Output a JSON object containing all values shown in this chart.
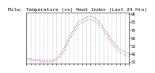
{
  "title": "Milw. Temperature (vs) Heat Index (Last 24 Hrs)",
  "bg_color": "#ffffff",
  "plot_bg": "#ffffff",
  "grid_color": "#aaaaaa",
  "red_color": "#dd0000",
  "blue_color": "#0000dd",
  "ylim": [
    28,
    92
  ],
  "yticks": [
    30,
    40,
    50,
    60,
    70,
    80,
    90
  ],
  "ytick_labels": [
    "30",
    "40",
    "50",
    "60",
    "70",
    "80",
    "90"
  ],
  "n_points": 72,
  "temp_values": [
    33,
    33,
    32,
    32,
    31,
    31,
    31,
    31,
    31,
    31,
    30,
    30,
    30,
    30,
    30,
    30,
    30,
    30,
    30,
    31,
    31,
    32,
    33,
    35,
    37,
    40,
    43,
    47,
    51,
    55,
    58,
    61,
    64,
    67,
    70,
    73,
    75,
    77,
    78,
    79,
    80,
    81,
    82,
    83,
    83,
    83,
    82,
    81,
    80,
    79,
    77,
    75,
    73,
    70,
    67,
    64,
    62,
    59,
    56,
    53,
    51,
    49,
    47,
    45,
    43,
    42,
    41,
    40,
    39,
    38,
    37,
    37
  ],
  "heat_values": [
    35,
    35,
    34,
    34,
    33,
    33,
    33,
    33,
    33,
    33,
    32,
    32,
    32,
    32,
    32,
    32,
    32,
    32,
    32,
    33,
    33,
    35,
    36,
    38,
    41,
    44,
    47,
    51,
    55,
    59,
    62,
    65,
    68,
    71,
    74,
    77,
    79,
    81,
    82,
    83,
    84,
    85,
    86,
    87,
    87,
    87,
    86,
    85,
    84,
    83,
    81,
    79,
    77,
    74,
    71,
    68,
    66,
    63,
    60,
    57,
    55,
    53,
    51,
    49,
    47,
    46,
    45,
    44,
    43,
    42,
    41,
    41
  ],
  "n_xticks": 25,
  "title_fontsize": 4.5,
  "tick_fontsize": 3.5,
  "dot_size": 0.6,
  "linewidth": 0.5
}
